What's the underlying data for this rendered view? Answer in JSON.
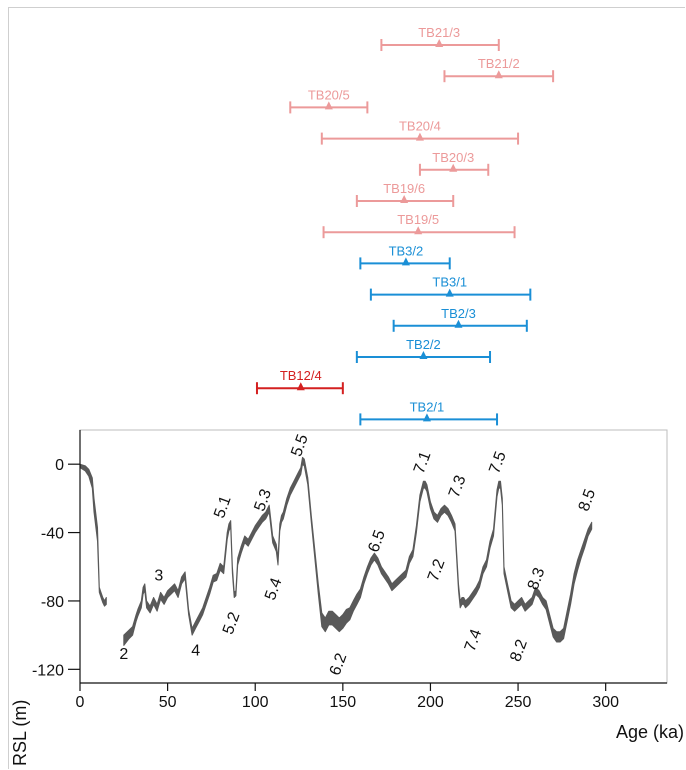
{
  "chart_data": [
    {
      "type": "scatter",
      "description_role": "age estimates with error bars",
      "x_axis_shared": true,
      "colors": {
        "pink": "#ec9a9a",
        "blue": "#1a8fd6",
        "red": "#d42020"
      },
      "samples": [
        {
          "label": "TB21/3",
          "age": 205,
          "min": 172,
          "max": 239,
          "group": "pink"
        },
        {
          "label": "TB21/2",
          "age": 239,
          "min": 208,
          "max": 270,
          "group": "pink"
        },
        {
          "label": "TB20/5",
          "age": 142,
          "min": 120,
          "max": 164,
          "group": "pink"
        },
        {
          "label": "TB20/4",
          "age": 194,
          "min": 138,
          "max": 250,
          "group": "pink"
        },
        {
          "label": "TB20/3",
          "age": 213,
          "min": 194,
          "max": 233,
          "group": "pink"
        },
        {
          "label": "TB19/6",
          "age": 185,
          "min": 158,
          "max": 213,
          "group": "pink"
        },
        {
          "label": "TB19/5",
          "age": 193,
          "min": 139,
          "max": 248,
          "group": "pink"
        },
        {
          "label": "TB3/2",
          "age": 186,
          "min": 160,
          "max": 211,
          "group": "blue"
        },
        {
          "label": "TB3/1",
          "age": 211,
          "min": 166,
          "max": 257,
          "group": "blue"
        },
        {
          "label": "TB2/3",
          "age": 216,
          "min": 179,
          "max": 255,
          "group": "blue"
        },
        {
          "label": "TB2/2",
          "age": 196,
          "min": 158,
          "max": 234,
          "group": "blue"
        },
        {
          "label": "TB12/4",
          "age": 126,
          "min": 101,
          "max": 150,
          "group": "red"
        },
        {
          "label": "TB2/1",
          "age": 198,
          "min": 160,
          "max": 238,
          "group": "blue"
        }
      ]
    },
    {
      "type": "area",
      "xlabel": "Age (ka)",
      "ylabel": "RSL (m)",
      "xlim": [
        0,
        335
      ],
      "ylim": [
        -128,
        20
      ],
      "xticks": [
        0,
        50,
        100,
        150,
        200,
        250,
        300
      ],
      "yticks": [
        0,
        -40,
        -80,
        -120
      ],
      "color": "#595959",
      "series": [
        {
          "x": [
            0,
            3,
            5,
            7,
            8,
            10,
            11,
            12,
            13,
            14,
            15
          ],
          "upper": [
            0,
            -1,
            -3,
            -8,
            -20,
            -37,
            -72,
            -75,
            -78,
            -80,
            -78
          ],
          "lower": [
            -2,
            -4,
            -7,
            -14,
            -28,
            -45,
            -75,
            -78,
            -81,
            -83,
            -82
          ]
        },
        {
          "x": [
            25,
            28,
            30,
            32,
            33,
            35,
            36,
            37,
            38,
            40,
            42,
            44,
            46,
            48,
            50,
            52,
            54,
            56,
            58,
            60,
            62,
            64,
            66,
            68,
            70,
            72,
            74,
            76,
            78,
            80,
            82,
            84,
            85,
            86,
            87,
            88,
            89,
            90,
            92,
            94,
            96,
            98,
            100,
            102,
            104,
            106,
            108,
            110,
            112,
            113,
            114,
            115,
            116,
            118,
            120,
            122,
            124,
            126,
            127,
            128,
            130,
            132,
            134,
            136,
            138,
            140,
            142,
            144,
            146,
            148,
            150,
            152,
            154,
            156,
            158,
            160,
            162,
            164,
            166,
            168,
            170,
            172,
            174,
            176,
            178,
            180,
            182,
            184,
            186,
            188,
            190,
            192,
            194,
            196,
            197,
            198,
            200,
            202,
            204,
            206,
            208,
            210,
            212,
            214,
            216,
            217,
            218,
            219,
            220,
            222,
            224,
            226,
            228,
            230,
            232,
            234,
            236,
            238,
            239,
            240,
            241,
            242,
            244,
            246,
            248,
            250,
            252,
            254,
            256,
            258,
            260,
            262,
            264,
            266,
            268,
            270,
            272,
            274,
            276,
            278,
            280,
            282,
            284,
            286,
            288,
            290,
            292
          ],
          "upper": [
            -100,
            -97,
            -95,
            -88,
            -85,
            -80,
            -72,
            -70,
            -80,
            -83,
            -78,
            -82,
            -75,
            -78,
            -74,
            -72,
            -70,
            -74,
            -66,
            -63,
            -85,
            -96,
            -92,
            -88,
            -84,
            -78,
            -72,
            -65,
            -64,
            -58,
            -60,
            -40,
            -35,
            -33,
            -60,
            -75,
            -74,
            -55,
            -48,
            -42,
            -44,
            -40,
            -36,
            -33,
            -30,
            -28,
            -24,
            -42,
            -47,
            -55,
            -35,
            -30,
            -28,
            -20,
            -14,
            -10,
            -6,
            -2,
            4,
            3,
            -8,
            -30,
            -50,
            -70,
            -87,
            -90,
            -86,
            -86,
            -88,
            -90,
            -88,
            -85,
            -84,
            -80,
            -76,
            -73,
            -66,
            -60,
            -55,
            -52,
            -55,
            -60,
            -63,
            -66,
            -70,
            -68,
            -66,
            -64,
            -62,
            -54,
            -50,
            -36,
            -18,
            -10,
            -10,
            -12,
            -22,
            -28,
            -30,
            -26,
            -24,
            -26,
            -30,
            -35,
            -70,
            -80,
            -78,
            -78,
            -80,
            -78,
            -75,
            -72,
            -68,
            -60,
            -56,
            -45,
            -38,
            -15,
            -10,
            -10,
            -20,
            -60,
            -70,
            -80,
            -82,
            -80,
            -78,
            -82,
            -80,
            -78,
            -72,
            -74,
            -78,
            -80,
            -88,
            -96,
            -98,
            -98,
            -96,
            -86,
            -76,
            -64,
            -56,
            -50,
            -44,
            -38,
            -34
          ],
          "lower": [
            -106,
            -102,
            -100,
            -92,
            -89,
            -84,
            -76,
            -74,
            -84,
            -87,
            -82,
            -86,
            -79,
            -82,
            -78,
            -76,
            -74,
            -78,
            -70,
            -67,
            -88,
            -100,
            -96,
            -92,
            -88,
            -82,
            -76,
            -69,
            -68,
            -62,
            -64,
            -44,
            -39,
            -37,
            -64,
            -78,
            -77,
            -59,
            -52,
            -46,
            -48,
            -44,
            -40,
            -37,
            -34,
            -32,
            -28,
            -46,
            -51,
            -59,
            -39,
            -34,
            -32,
            -24,
            -18,
            -14,
            -10,
            -6,
            0,
            -1,
            -12,
            -34,
            -55,
            -76,
            -95,
            -98,
            -94,
            -94,
            -96,
            -98,
            -96,
            -93,
            -91,
            -86,
            -82,
            -78,
            -70,
            -64,
            -59,
            -56,
            -59,
            -64,
            -67,
            -70,
            -74,
            -72,
            -70,
            -68,
            -66,
            -58,
            -54,
            -40,
            -22,
            -14,
            -14,
            -16,
            -26,
            -32,
            -34,
            -30,
            -28,
            -30,
            -34,
            -39,
            -74,
            -84,
            -82,
            -82,
            -84,
            -82,
            -79,
            -76,
            -72,
            -64,
            -60,
            -49,
            -42,
            -19,
            -14,
            -14,
            -24,
            -64,
            -74,
            -84,
            -86,
            -84,
            -82,
            -86,
            -84,
            -82,
            -76,
            -78,
            -82,
            -85,
            -93,
            -101,
            -104,
            -104,
            -102,
            -92,
            -82,
            -70,
            -62,
            -55,
            -49,
            -42,
            -38
          ]
        }
      ],
      "mis_labels": [
        {
          "text": "2",
          "x": 25,
          "y": -114,
          "rot": 0
        },
        {
          "text": "3",
          "x": 45,
          "y": -68,
          "rot": 0
        },
        {
          "text": "4",
          "x": 66,
          "y": -112,
          "rot": 0
        },
        {
          "text": "5.1",
          "x": 84,
          "y": -26,
          "rot": -70
        },
        {
          "text": "5.2",
          "x": 89,
          "y": -94,
          "rot": -70
        },
        {
          "text": "5.3",
          "x": 107,
          "y": -22,
          "rot": -70
        },
        {
          "text": "5.4",
          "x": 113,
          "y": -74,
          "rot": -70
        },
        {
          "text": "5.5",
          "x": 128,
          "y": 10,
          "rot": -70
        },
        {
          "text": "6.2",
          "x": 150,
          "y": -118,
          "rot": -70
        },
        {
          "text": "6.5",
          "x": 172,
          "y": -46,
          "rot": -70
        },
        {
          "text": "7.1",
          "x": 198,
          "y": 0,
          "rot": -70
        },
        {
          "text": "7.2",
          "x": 206,
          "y": -63,
          "rot": -70
        },
        {
          "text": "7.3",
          "x": 218,
          "y": -14,
          "rot": -70
        },
        {
          "text": "7.4",
          "x": 227,
          "y": -104,
          "rot": -70
        },
        {
          "text": "7.5",
          "x": 241,
          "y": 0,
          "rot": -70
        },
        {
          "text": "8.2",
          "x": 253,
          "y": -110,
          "rot": -70
        },
        {
          "text": "8.3",
          "x": 263,
          "y": -68,
          "rot": -70
        },
        {
          "text": "8.5",
          "x": 292,
          "y": -22,
          "rot": -70
        }
      ]
    }
  ]
}
